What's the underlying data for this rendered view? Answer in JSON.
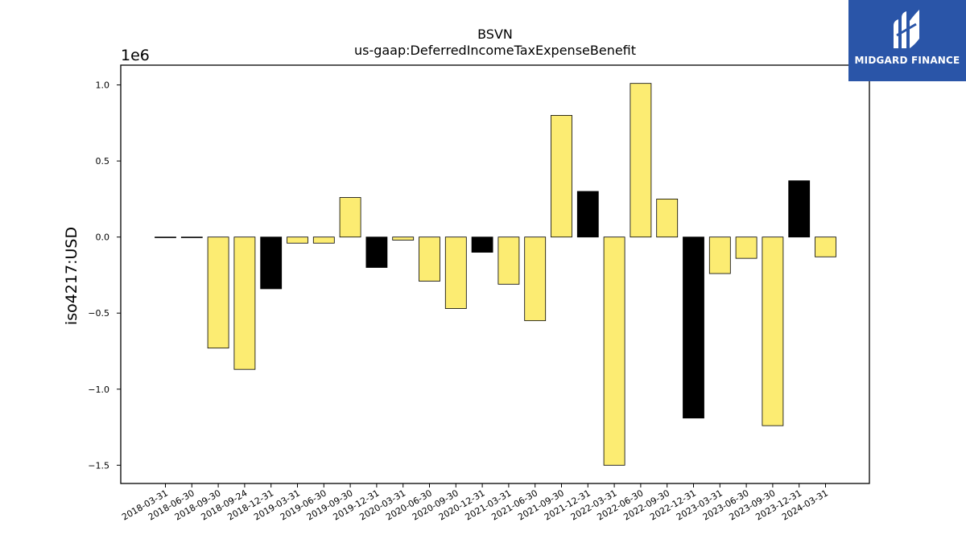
{
  "chart_data": {
    "type": "bar",
    "title": "BSVN",
    "subtitle": "us-gaap:DeferredIncomeTaxExpenseBenefit",
    "ylabel": "iso4217:USD",
    "xlabel": "",
    "offset_text": "1e6",
    "ylim": [
      -1620000,
      1130000
    ],
    "yticks": [
      1.0,
      0.5,
      0.0,
      -0.5,
      -1.0,
      -1.5
    ],
    "ytick_labels": [
      "1.0",
      "0.5",
      "0.0",
      "−0.5",
      "−1.0",
      "−1.5"
    ],
    "grid": false,
    "legend": "none",
    "colors": {
      "default": "#fcec72",
      "highlight": "#000000",
      "edge": "#000000"
    },
    "categories": [
      "2018-03-31",
      "2018-06-30",
      "2018-09-30",
      "2018-09-24",
      "2018-12-31",
      "2019-03-31",
      "2019-06-30",
      "2019-09-30",
      "2019-12-31",
      "2020-03-31",
      "2020-06-30",
      "2020-09-30",
      "2020-12-31",
      "2021-03-31",
      "2021-06-30",
      "2021-09-30",
      "2021-12-31",
      "2022-03-31",
      "2022-06-30",
      "2022-09-30",
      "2022-12-31",
      "2023-03-31",
      "2023-06-30",
      "2023-09-30",
      "2023-12-31",
      "2024-03-31"
    ],
    "values": [
      0,
      0,
      -730000,
      -870000,
      -340000,
      -40000,
      -40000,
      260000,
      -200000,
      -20000,
      -290000,
      -470000,
      -100000,
      -310000,
      -550000,
      800000,
      300000,
      -1500000,
      1010000,
      250000,
      -1190000,
      -240000,
      -140000,
      -1240000,
      370000,
      -130000
    ],
    "highlight": [
      false,
      false,
      false,
      false,
      true,
      false,
      false,
      false,
      true,
      false,
      false,
      false,
      true,
      false,
      false,
      false,
      true,
      false,
      false,
      false,
      true,
      false,
      false,
      false,
      true,
      false
    ]
  },
  "logo": {
    "text": "MIDGARD FINANCE",
    "icon": "midgard-logo-icon"
  }
}
